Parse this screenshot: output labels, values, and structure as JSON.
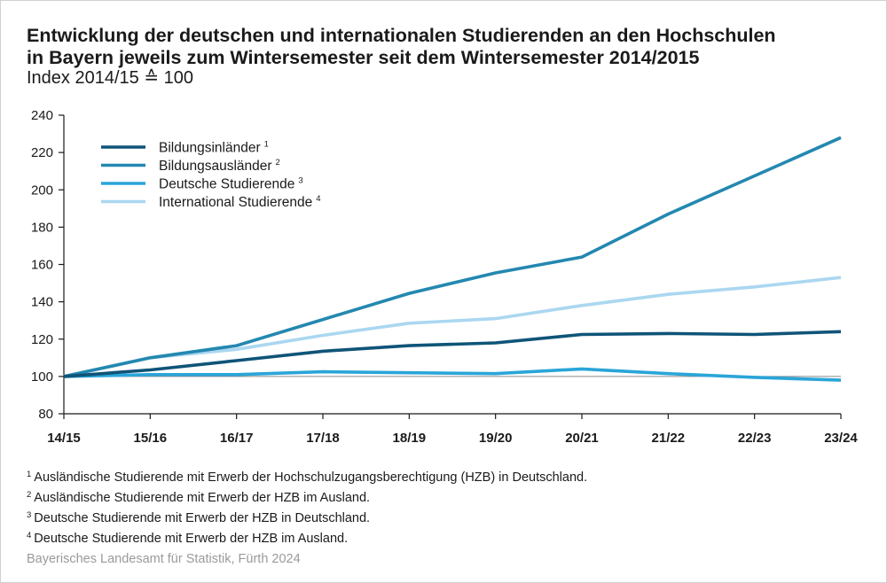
{
  "title_line1": "Entwicklung der deutschen und internationalen Studierenden an den Hochschulen",
  "title_line2": "in Bayern jeweils zum Wintersemester seit dem Wintersemester 2014/2015",
  "subtitle": "Index 2014/15 ≙ 100",
  "chart_data": {
    "type": "line",
    "title": "Entwicklung der deutschen und internationalen Studierenden an den Hochschulen in Bayern jeweils zum Wintersemester seit dem Wintersemester 2014/2015",
    "subtitle": "Index 2014/15 ≙ 100",
    "categories": [
      "14/15",
      "15/16",
      "16/17",
      "17/18",
      "18/19",
      "19/20",
      "20/21",
      "21/22",
      "22/23",
      "23/24"
    ],
    "ylim": [
      80,
      240
    ],
    "yticks": [
      80,
      100,
      120,
      140,
      160,
      180,
      200,
      220,
      240
    ],
    "grid": false,
    "legend_position": "top-left",
    "series": [
      {
        "name": "Bildungsinländer",
        "footnote": "1",
        "color": "#0f5478",
        "values": [
          100,
          103.5,
          108.5,
          113.5,
          116.5,
          118,
          122.5,
          123,
          122.5,
          124
        ]
      },
      {
        "name": "Bildungsausländer",
        "footnote": "2",
        "color": "#2488b0",
        "values": [
          100,
          110,
          116.5,
          130.5,
          144.5,
          155.5,
          164,
          187,
          207.5,
          228
        ]
      },
      {
        "name": "Deutsche Studierende",
        "footnote": "3",
        "color": "#2aa5d8",
        "values": [
          100,
          101,
          101,
          102.5,
          102,
          101.5,
          104,
          101.5,
          99.5,
          98
        ]
      },
      {
        "name": "International Studierende",
        "footnote": "4",
        "color": "#abd7f0",
        "values": [
          100,
          110,
          114.5,
          122,
          128.5,
          131,
          138,
          144,
          148,
          153
        ]
      }
    ]
  },
  "footnotes": [
    {
      "marker": "1",
      "text": "Ausländische Studierende mit Erwerb der Hochschulzugangsberechtigung (HZB) in Deutschland."
    },
    {
      "marker": "2",
      "text": "Ausländische Studierende mit Erwerb der HZB im Ausland."
    },
    {
      "marker": "3",
      "text": "Deutsche Studierende mit Erwerb der HZB in Deutschland."
    },
    {
      "marker": "4",
      "text": "Deutsche Studierende mit Erwerb der HZB im Ausland."
    }
  ],
  "source": "Bayerisches Landesamt für Statistik, Fürth 2024"
}
